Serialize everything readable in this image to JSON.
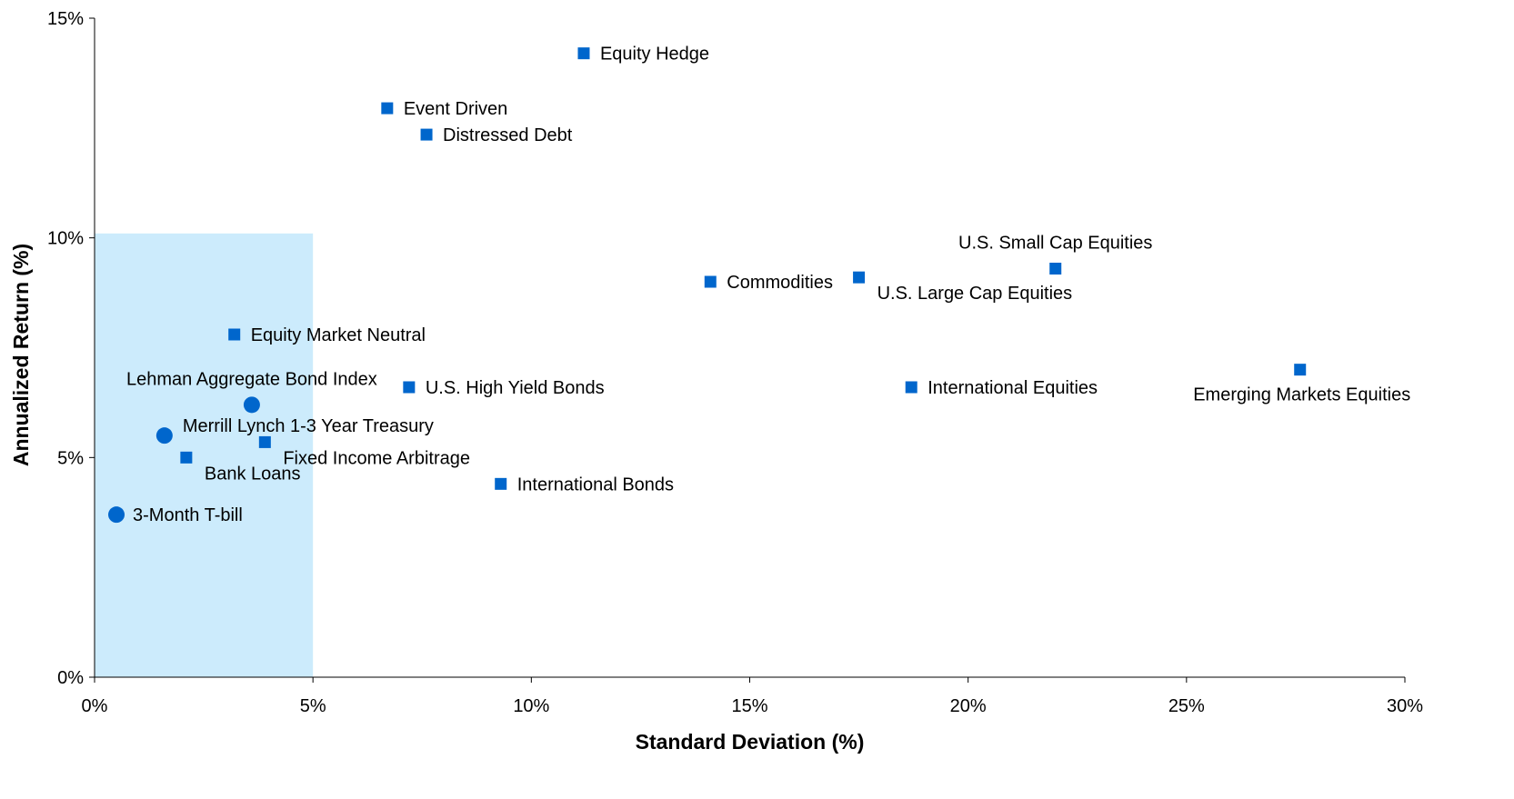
{
  "chart_data": {
    "type": "scatter",
    "title": "",
    "xlabel": "Standard Deviation (%)",
    "ylabel": "Annualized Return (%)",
    "xlim": [
      0,
      30
    ],
    "ylim": [
      0,
      15
    ],
    "x_ticks": [
      {
        "value": 0,
        "label": "0%"
      },
      {
        "value": 5,
        "label": "5%"
      },
      {
        "value": 10,
        "label": "10%"
      },
      {
        "value": 15,
        "label": "15%"
      },
      {
        "value": 20,
        "label": "20%"
      },
      {
        "value": 25,
        "label": "25%"
      },
      {
        "value": 30,
        "label": "30%"
      }
    ],
    "y_ticks": [
      {
        "value": 0,
        "label": "0%"
      },
      {
        "value": 5,
        "label": "5%"
      },
      {
        "value": 10,
        "label": "10%"
      },
      {
        "value": 15,
        "label": "15%"
      }
    ],
    "grid": false,
    "legend": "none",
    "highlight_region": {
      "x": [
        0,
        5
      ],
      "y": [
        0,
        10.1
      ],
      "color": "#CCEBFC"
    },
    "colors": {
      "marker": "#0066CC",
      "axis": "#000000",
      "background": "#FFFFFF"
    },
    "points": [
      {
        "label": "Equity Hedge",
        "x": 11.2,
        "y": 14.2,
        "marker": "square",
        "label_pos": "right"
      },
      {
        "label": "Event Driven",
        "x": 6.7,
        "y": 12.95,
        "marker": "square",
        "label_pos": "right"
      },
      {
        "label": "Distressed Debt",
        "x": 7.6,
        "y": 12.35,
        "marker": "square",
        "label_pos": "right"
      },
      {
        "label": "Commodities",
        "x": 14.1,
        "y": 9.0,
        "marker": "square",
        "label_pos": "right"
      },
      {
        "label": "U.S. Large Cap Equities",
        "x": 17.5,
        "y": 9.1,
        "marker": "square",
        "label_pos": "below-right"
      },
      {
        "label": "U.S. Small Cap Equities",
        "x": 22.0,
        "y": 9.3,
        "marker": "square",
        "label_pos": "above"
      },
      {
        "label": "Emerging Markets Equities",
        "x": 27.6,
        "y": 7.0,
        "marker": "square",
        "label_pos": "below"
      },
      {
        "label": "International Equities",
        "x": 18.7,
        "y": 6.6,
        "marker": "square",
        "label_pos": "right"
      },
      {
        "label": "Equity Market Neutral",
        "x": 3.2,
        "y": 7.8,
        "marker": "square",
        "label_pos": "right"
      },
      {
        "label": "U.S. High Yield Bonds",
        "x": 7.2,
        "y": 6.6,
        "marker": "square",
        "label_pos": "right"
      },
      {
        "label": "Lehman Aggregate Bond Index",
        "x": 3.6,
        "y": 6.2,
        "marker": "circle",
        "label_pos": "above"
      },
      {
        "label": "Merrill Lynch 1-3 Year Treasury",
        "x": 1.6,
        "y": 5.5,
        "marker": "circle",
        "label_pos": "above-right"
      },
      {
        "label": "Fixed Income Arbitrage",
        "x": 3.9,
        "y": 5.35,
        "marker": "square",
        "label_pos": "below-right"
      },
      {
        "label": "Bank Loans",
        "x": 2.1,
        "y": 5.0,
        "marker": "square",
        "label_pos": "below-right"
      },
      {
        "label": "International Bonds",
        "x": 9.3,
        "y": 4.4,
        "marker": "square",
        "label_pos": "right"
      },
      {
        "label": "3-Month T-bill",
        "x": 0.5,
        "y": 3.7,
        "marker": "circle",
        "label_pos": "right"
      }
    ]
  }
}
